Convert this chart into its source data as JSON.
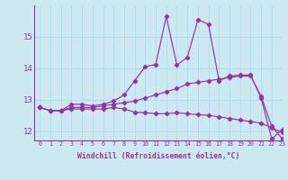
{
  "xlabel": "Windchill (Refroidissement éolien,°C)",
  "background_color": "#cce8f0",
  "grid_color": "#aaddee",
  "line_color": "#993399",
  "xlim": [
    -0.5,
    23
  ],
  "ylim": [
    11.7,
    16.0
  ],
  "yticks": [
    12,
    13,
    14,
    15
  ],
  "xticks": [
    0,
    1,
    2,
    3,
    4,
    5,
    6,
    7,
    8,
    9,
    10,
    11,
    12,
    13,
    14,
    15,
    16,
    17,
    18,
    19,
    20,
    21,
    22,
    23
  ],
  "series": [
    [
      12.75,
      12.65,
      12.65,
      12.7,
      12.7,
      12.7,
      12.7,
      12.75,
      12.7,
      12.6,
      12.58,
      12.55,
      12.55,
      12.58,
      12.55,
      12.52,
      12.5,
      12.45,
      12.4,
      12.35,
      12.3,
      12.25,
      12.1,
      11.95
    ],
    [
      12.75,
      12.65,
      12.65,
      12.75,
      12.75,
      12.75,
      12.8,
      12.85,
      12.9,
      12.95,
      13.05,
      13.15,
      13.25,
      13.35,
      13.5,
      13.55,
      13.6,
      13.65,
      13.7,
      13.75,
      13.75,
      13.1,
      12.15,
      11.75
    ],
    [
      12.75,
      12.65,
      12.65,
      12.85,
      12.85,
      12.8,
      12.85,
      12.95,
      13.15,
      13.6,
      14.05,
      14.12,
      15.65,
      14.1,
      14.35,
      15.55,
      15.4,
      13.6,
      13.75,
      13.78,
      13.78,
      13.05,
      11.75,
      12.05
    ]
  ]
}
